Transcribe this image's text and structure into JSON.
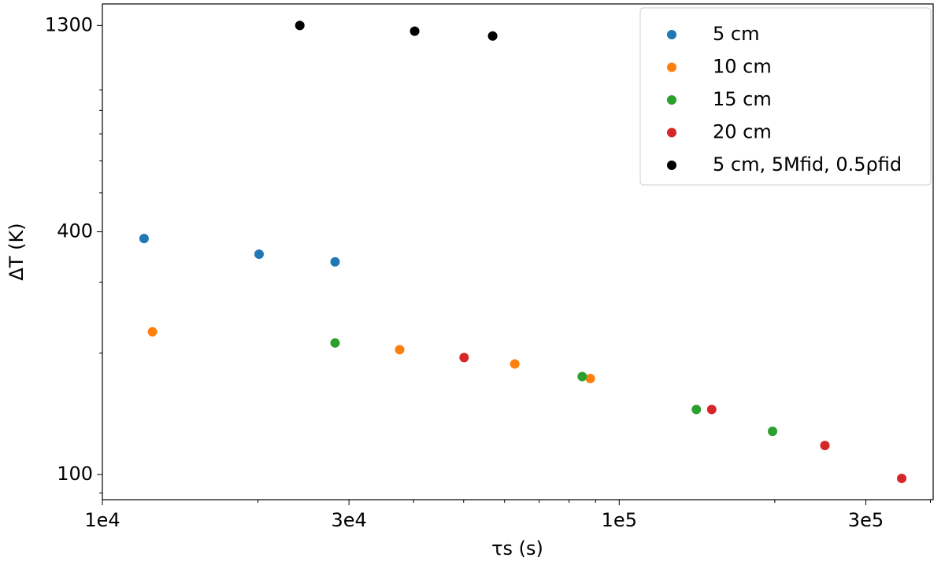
{
  "chart_data": {
    "type": "scatter",
    "x_scale": "log",
    "y_scale": "log",
    "xlabel": "τs (s)",
    "ylabel": "ΔT (K)",
    "xlim": [
      10000,
      405000
    ],
    "ylim": [
      86.6,
      1470
    ],
    "xticks": [
      {
        "value": 10000,
        "label": "1e4"
      },
      {
        "value": 30000,
        "label": "3e4"
      },
      {
        "value": 100000,
        "label": "1e5"
      },
      {
        "value": 300000,
        "label": "3e5"
      }
    ],
    "xminorticks": [
      20000,
      40000,
      50000,
      60000,
      70000,
      80000,
      90000,
      200000,
      400000
    ],
    "yticks": [
      100,
      400,
      1300
    ],
    "yminorticks": [
      90,
      200,
      300,
      500,
      600,
      700,
      800,
      900
    ],
    "legend": "upper right",
    "series": [
      {
        "name": "5 cm",
        "color": "#1f77b4",
        "x": [
          12040,
          20100,
          28200
        ],
        "values": [
          385,
          352,
          337
        ]
      },
      {
        "name": "10 cm",
        "color": "#ff7f0e",
        "x": [
          12500,
          37600,
          62800,
          87900
        ],
        "values": [
          226,
          204,
          188,
          173
        ]
      },
      {
        "name": "15 cm",
        "color": "#2ca02c",
        "x": [
          28200,
          84800,
          141000,
          198000
        ],
        "values": [
          212,
          175,
          145,
          128
        ]
      },
      {
        "name": "20 cm",
        "color": "#d62728",
        "x": [
          50100,
          151000,
          250000,
          352000
        ],
        "values": [
          195,
          145,
          118,
          97.8
        ]
      },
      {
        "name": "5 cm, 5Mfid, 0.5ρfid",
        "color": "#000000",
        "x": [
          24100,
          40200,
          56900
        ],
        "values": [
          1300,
          1258,
          1224
        ]
      }
    ]
  }
}
